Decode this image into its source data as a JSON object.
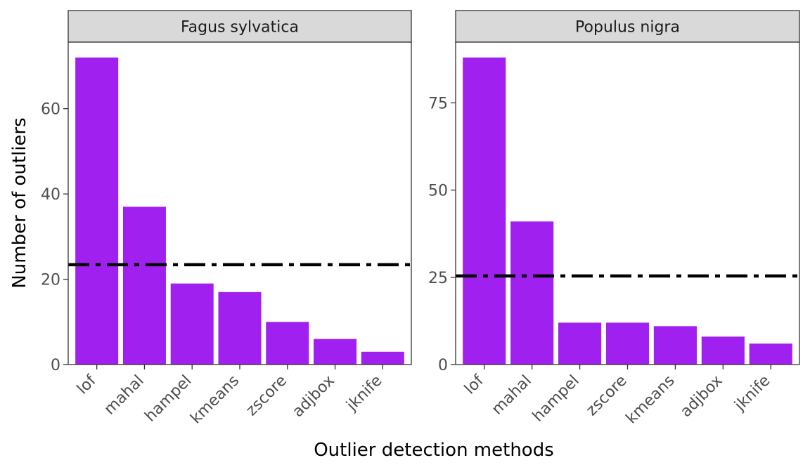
{
  "chart_data": {
    "type": "bar",
    "xlabel": "Outlier detection methods",
    "ylabel": "Number of outliers",
    "bar_color": "#A020F0",
    "reference_line": {
      "style": "dash-dot",
      "color": "#000000"
    },
    "panels": [
      {
        "title": "Fagus sylvatica",
        "categories": [
          "lof",
          "mahal",
          "hampel",
          "kmeans",
          "zscore",
          "adjbox",
          "jknife"
        ],
        "values": [
          72,
          37,
          19,
          17,
          10,
          6,
          3
        ],
        "reference_value": 23.4,
        "ylim": [
          0,
          75.6
        ],
        "yticks": [
          0,
          20,
          40,
          60
        ]
      },
      {
        "title": "Populus nigra",
        "categories": [
          "lof",
          "mahal",
          "hampel",
          "zscore",
          "kmeans",
          "adjbox",
          "jknife"
        ],
        "values": [
          88,
          41,
          12,
          12,
          11,
          8,
          6
        ],
        "reference_value": 25.4,
        "ylim": [
          0,
          92.4
        ],
        "yticks": [
          0,
          25,
          50,
          75
        ]
      }
    ]
  }
}
